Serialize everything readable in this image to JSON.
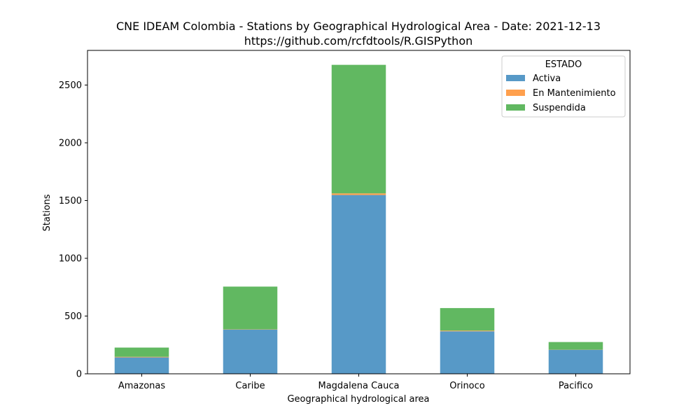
{
  "chart_data": {
    "type": "bar",
    "stacked": true,
    "title": "CNE IDEAM Colombia -  Stations by Geographical Hydrological Area - Date: 2021-12-13",
    "subtitle": "https://github.com/rcfdtools/R.GISPython",
    "xlabel": "Geographical hydrological area",
    "ylabel": "Stations",
    "categories": [
      "Amazonas",
      "Caribe",
      "Magdalena Cauca",
      "Orinoco",
      "Pacifico"
    ],
    "ylim": [
      0,
      2800
    ],
    "yticks": [
      0,
      500,
      1000,
      1500,
      2000,
      2500
    ],
    "legend": {
      "title": "ESTADO",
      "placement": "top-right"
    },
    "series": [
      {
        "name": "Activa",
        "color": "#5799c7",
        "values": [
          142,
          383,
          1548,
          368,
          208
        ]
      },
      {
        "name": "En Mantenimiento",
        "color": "#ffa04d",
        "values": [
          5,
          2,
          14,
          6,
          1
        ]
      },
      {
        "name": "Suspendida",
        "color": "#61b861",
        "values": [
          80,
          370,
          1113,
          195,
          66
        ]
      }
    ]
  }
}
